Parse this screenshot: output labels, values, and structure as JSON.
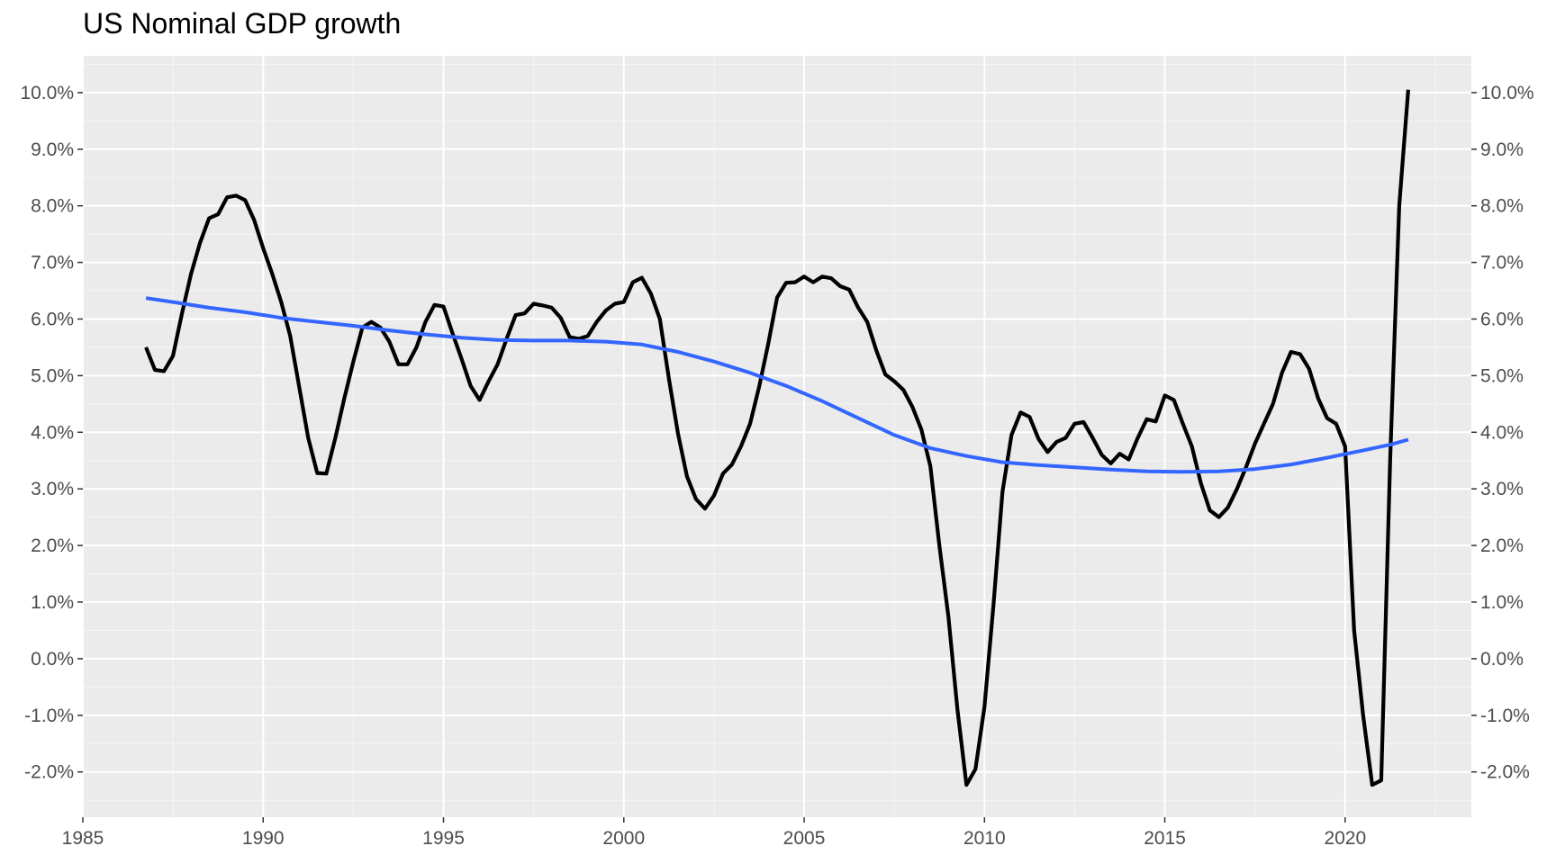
{
  "chart_data": {
    "type": "line",
    "title": "US Nominal GDP growth",
    "xlabel": "",
    "ylabel": "",
    "xlim": [
      1985,
      2023.5
    ],
    "ylim": [
      -2.8,
      10.65
    ],
    "x_ticks": [
      1985,
      1990,
      1995,
      2000,
      2005,
      2010,
      2015,
      2020
    ],
    "x_tick_labels": [
      "1985",
      "1990",
      "1995",
      "2000",
      "2005",
      "2010",
      "2015",
      "2020"
    ],
    "y_ticks": [
      -2,
      -1,
      0,
      1,
      2,
      3,
      4,
      5,
      6,
      7,
      8,
      9,
      10
    ],
    "y_tick_labels": [
      "-2.0%",
      "-1.0%",
      "0.0%",
      "1.0%",
      "2.0%",
      "3.0%",
      "4.0%",
      "5.0%",
      "6.0%",
      "7.0%",
      "8.0%",
      "9.0%",
      "10.0%"
    ],
    "secondary_y_axis": true,
    "grid": true,
    "legend": "none",
    "series": [
      {
        "color": "#000000",
        "points": [
          [
            1986.75,
            5.5
          ],
          [
            1987.0,
            5.1
          ],
          [
            1987.25,
            5.08
          ],
          [
            1987.5,
            5.35
          ],
          [
            1987.75,
            6.1
          ],
          [
            1988.0,
            6.8
          ],
          [
            1988.25,
            7.35
          ],
          [
            1988.5,
            7.78
          ],
          [
            1988.75,
            7.85
          ],
          [
            1989.0,
            8.15
          ],
          [
            1989.25,
            8.18
          ],
          [
            1989.5,
            8.1
          ],
          [
            1989.75,
            7.75
          ],
          [
            1990.0,
            7.25
          ],
          [
            1990.25,
            6.8
          ],
          [
            1990.5,
            6.3
          ],
          [
            1990.75,
            5.7
          ],
          [
            1991.0,
            4.8
          ],
          [
            1991.25,
            3.9
          ],
          [
            1991.5,
            3.28
          ],
          [
            1991.75,
            3.27
          ],
          [
            1992.0,
            3.9
          ],
          [
            1992.25,
            4.6
          ],
          [
            1992.5,
            5.25
          ],
          [
            1992.75,
            5.85
          ],
          [
            1993.0,
            5.95
          ],
          [
            1993.25,
            5.85
          ],
          [
            1993.5,
            5.6
          ],
          [
            1993.75,
            5.2
          ],
          [
            1994.0,
            5.2
          ],
          [
            1994.25,
            5.5
          ],
          [
            1994.5,
            5.95
          ],
          [
            1994.75,
            6.25
          ],
          [
            1995.0,
            6.22
          ],
          [
            1995.25,
            5.75
          ],
          [
            1995.5,
            5.3
          ],
          [
            1995.75,
            4.82
          ],
          [
            1996.0,
            4.57
          ],
          [
            1996.25,
            4.9
          ],
          [
            1996.5,
            5.2
          ],
          [
            1996.75,
            5.65
          ],
          [
            1997.0,
            6.07
          ],
          [
            1997.25,
            6.1
          ],
          [
            1997.5,
            6.27
          ],
          [
            1997.75,
            6.24
          ],
          [
            1998.0,
            6.2
          ],
          [
            1998.25,
            6.02
          ],
          [
            1998.5,
            5.68
          ],
          [
            1998.75,
            5.65
          ],
          [
            1999.0,
            5.7
          ],
          [
            1999.25,
            5.95
          ],
          [
            1999.5,
            6.15
          ],
          [
            1999.75,
            6.27
          ],
          [
            2000.0,
            6.3
          ],
          [
            2000.25,
            6.65
          ],
          [
            2000.5,
            6.73
          ],
          [
            2000.75,
            6.45
          ],
          [
            2001.0,
            6.0
          ],
          [
            2001.25,
            4.95
          ],
          [
            2001.5,
            3.98
          ],
          [
            2001.75,
            3.22
          ],
          [
            2002.0,
            2.82
          ],
          [
            2002.25,
            2.65
          ],
          [
            2002.5,
            2.88
          ],
          [
            2002.75,
            3.27
          ],
          [
            2003.0,
            3.43
          ],
          [
            2003.25,
            3.75
          ],
          [
            2003.5,
            4.15
          ],
          [
            2003.75,
            4.8
          ],
          [
            2004.0,
            5.55
          ],
          [
            2004.25,
            6.38
          ],
          [
            2004.5,
            6.64
          ],
          [
            2004.75,
            6.65
          ],
          [
            2005.0,
            6.75
          ],
          [
            2005.25,
            6.65
          ],
          [
            2005.5,
            6.75
          ],
          [
            2005.75,
            6.72
          ],
          [
            2006.0,
            6.58
          ],
          [
            2006.25,
            6.52
          ],
          [
            2006.5,
            6.2
          ],
          [
            2006.75,
            5.95
          ],
          [
            2007.0,
            5.45
          ],
          [
            2007.25,
            5.02
          ],
          [
            2007.5,
            4.9
          ],
          [
            2007.75,
            4.75
          ],
          [
            2008.0,
            4.45
          ],
          [
            2008.25,
            4.05
          ],
          [
            2008.5,
            3.4
          ],
          [
            2008.75,
            2.0
          ],
          [
            2009.0,
            0.75
          ],
          [
            2009.25,
            -0.9
          ],
          [
            2009.5,
            -2.23
          ],
          [
            2009.75,
            -1.95
          ],
          [
            2010.0,
            -0.85
          ],
          [
            2010.25,
            0.95
          ],
          [
            2010.5,
            2.95
          ],
          [
            2010.75,
            3.95
          ],
          [
            2011.0,
            4.35
          ],
          [
            2011.25,
            4.27
          ],
          [
            2011.5,
            3.88
          ],
          [
            2011.75,
            3.65
          ],
          [
            2012.0,
            3.83
          ],
          [
            2012.25,
            3.9
          ],
          [
            2012.5,
            4.15
          ],
          [
            2012.75,
            4.18
          ],
          [
            2013.0,
            3.9
          ],
          [
            2013.25,
            3.6
          ],
          [
            2013.5,
            3.45
          ],
          [
            2013.75,
            3.62
          ],
          [
            2014.0,
            3.52
          ],
          [
            2014.25,
            3.9
          ],
          [
            2014.5,
            4.23
          ],
          [
            2014.75,
            4.19
          ],
          [
            2015.0,
            4.65
          ],
          [
            2015.25,
            4.57
          ],
          [
            2015.5,
            4.15
          ],
          [
            2015.75,
            3.75
          ],
          [
            2016.0,
            3.1
          ],
          [
            2016.25,
            2.62
          ],
          [
            2016.5,
            2.5
          ],
          [
            2016.75,
            2.67
          ],
          [
            2017.0,
            3.0
          ],
          [
            2017.25,
            3.38
          ],
          [
            2017.5,
            3.8
          ],
          [
            2017.75,
            4.15
          ],
          [
            2018.0,
            4.5
          ],
          [
            2018.25,
            5.05
          ],
          [
            2018.5,
            5.42
          ],
          [
            2018.75,
            5.38
          ],
          [
            2019.0,
            5.12
          ],
          [
            2019.25,
            4.6
          ],
          [
            2019.5,
            4.25
          ],
          [
            2019.75,
            4.15
          ],
          [
            2020.0,
            3.75
          ],
          [
            2020.25,
            0.5
          ],
          [
            2020.5,
            -1.0
          ],
          [
            2020.75,
            -2.23
          ],
          [
            2021.0,
            -2.15
          ],
          [
            2021.25,
            3.55
          ],
          [
            2021.5,
            8.0
          ],
          [
            2021.75,
            10.05
          ]
        ]
      },
      {
        "color": "#3366ff",
        "points": [
          [
            1986.75,
            6.37
          ],
          [
            1987.5,
            6.3
          ],
          [
            1988.5,
            6.2
          ],
          [
            1989.5,
            6.12
          ],
          [
            1990.5,
            6.02
          ],
          [
            1991.5,
            5.95
          ],
          [
            1992.5,
            5.88
          ],
          [
            1993.5,
            5.8
          ],
          [
            1994.5,
            5.73
          ],
          [
            1995.5,
            5.67
          ],
          [
            1996.5,
            5.63
          ],
          [
            1997.5,
            5.62
          ],
          [
            1998.5,
            5.62
          ],
          [
            1999.5,
            5.6
          ],
          [
            2000.5,
            5.55
          ],
          [
            2001.5,
            5.42
          ],
          [
            2002.5,
            5.25
          ],
          [
            2003.5,
            5.05
          ],
          [
            2004.5,
            4.82
          ],
          [
            2005.5,
            4.55
          ],
          [
            2006.5,
            4.25
          ],
          [
            2007.5,
            3.95
          ],
          [
            2008.5,
            3.72
          ],
          [
            2009.5,
            3.58
          ],
          [
            2010.5,
            3.47
          ],
          [
            2011.5,
            3.42
          ],
          [
            2012.5,
            3.38
          ],
          [
            2013.5,
            3.34
          ],
          [
            2014.5,
            3.31
          ],
          [
            2015.5,
            3.3
          ],
          [
            2016.5,
            3.31
          ],
          [
            2017.5,
            3.35
          ],
          [
            2018.5,
            3.43
          ],
          [
            2019.5,
            3.55
          ],
          [
            2020.5,
            3.68
          ],
          [
            2021.25,
            3.78
          ],
          [
            2021.75,
            3.87
          ]
        ]
      }
    ]
  }
}
